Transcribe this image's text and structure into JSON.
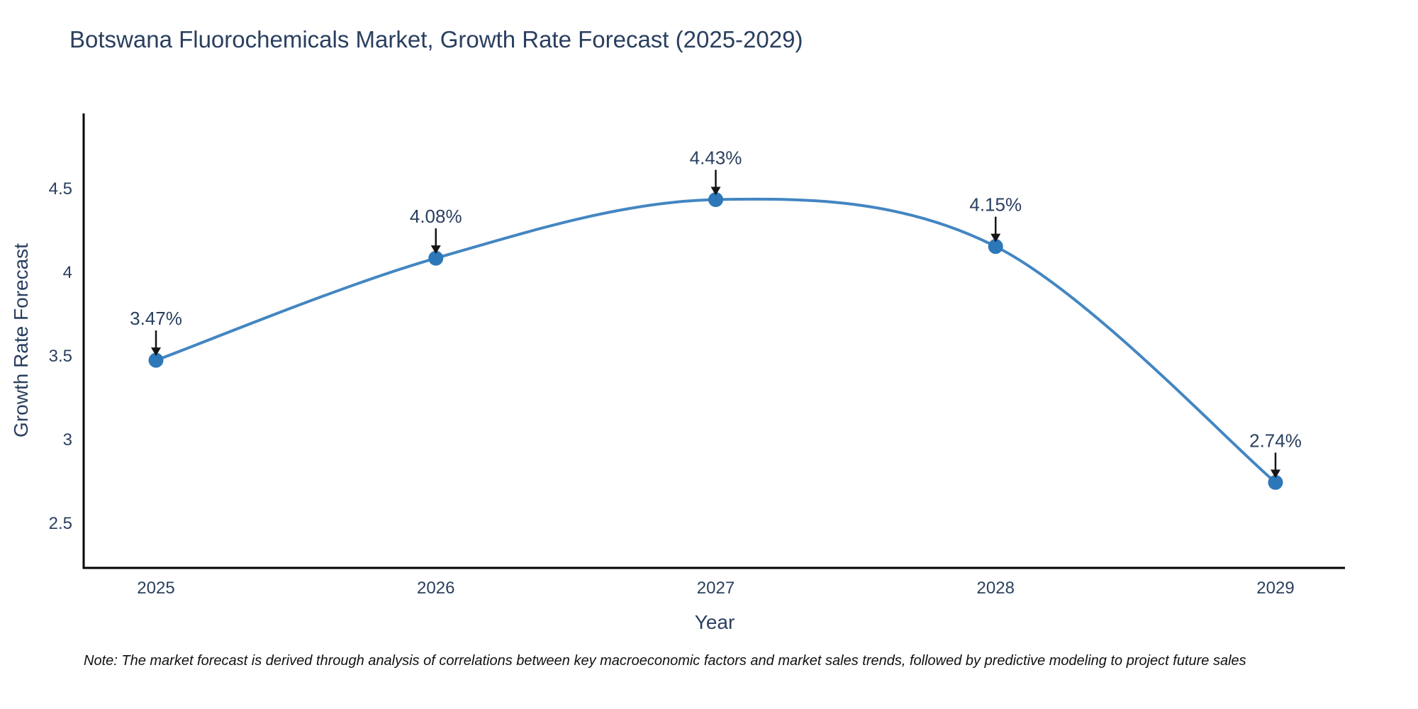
{
  "title": "Botswana Fluorochemicals Market, Growth Rate Forecast (2025-2029)",
  "note": "Note: The market forecast is derived through analysis of correlations between key macroeconomic factors and market sales trends, followed by predictive modeling to project future sales",
  "chart_data": {
    "type": "line",
    "line_shape": "spline",
    "title": "Botswana Fluorochemicals Market, Growth Rate Forecast (2025-2029)",
    "xlabel": "Year",
    "ylabel": "Growth Rate Forecast",
    "categories": [
      "2025",
      "2026",
      "2027",
      "2028",
      "2029"
    ],
    "values": [
      3.47,
      4.08,
      4.43,
      4.15,
      2.74
    ],
    "point_labels": [
      "3.47%",
      "4.08%",
      "4.43%",
      "4.15%",
      "2.74%"
    ],
    "yticks": [
      2.5,
      3,
      3.5,
      4,
      4.5
    ],
    "ylim": [
      2.229,
      4.945
    ],
    "grid": false,
    "legend": "none",
    "line_color": "#4386c2",
    "marker_color": "#2e77b8",
    "axis_color": "#000000",
    "text_color": "#2a3f5f",
    "arrow_color": "#151515"
  }
}
